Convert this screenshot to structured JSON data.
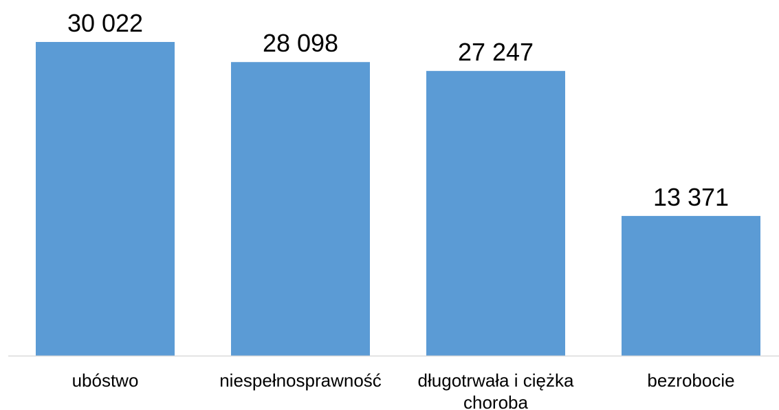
{
  "chart_data": {
    "type": "bar",
    "categories": [
      [
        "ubóstwo"
      ],
      [
        "niespełnosprawność"
      ],
      [
        "długotrwała i ciężka",
        "choroba"
      ],
      [
        "bezrobocie"
      ]
    ],
    "values": [
      30022,
      28098,
      27247,
      13371
    ],
    "value_labels": [
      "30 022",
      "28 098",
      "27 247",
      "13 371"
    ],
    "title": "",
    "xlabel": "",
    "ylabel": "",
    "ylim": [
      0,
      30022
    ],
    "grid": false,
    "legend": "none",
    "bar_color": "#5B9BD5",
    "axis_color": "#D9D9D9"
  }
}
